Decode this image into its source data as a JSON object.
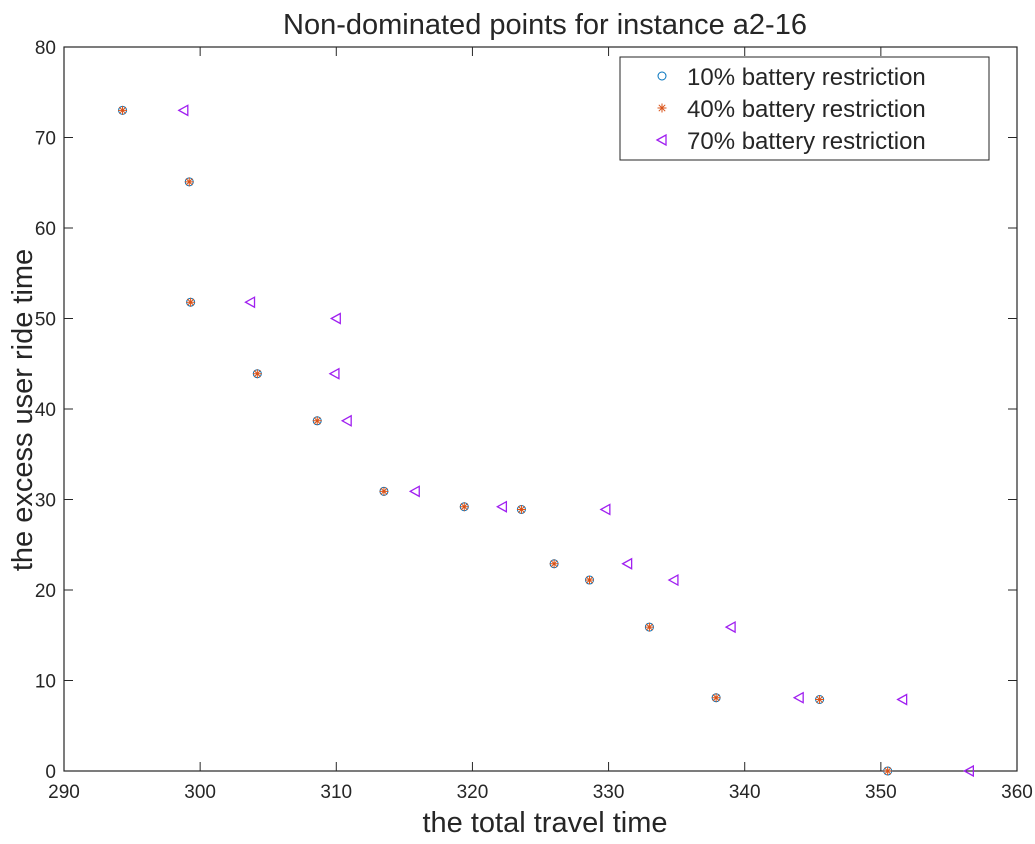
{
  "chart_data": {
    "type": "scatter",
    "title": "Non-dominated points for instance a2-16",
    "xlabel": "the total travel time",
    "ylabel": "the excess user ride time",
    "xlim": [
      290,
      360
    ],
    "ylim": [
      0,
      80
    ],
    "xticks": [
      290,
      300,
      310,
      320,
      330,
      340,
      350,
      360
    ],
    "yticks": [
      0,
      10,
      20,
      30,
      40,
      50,
      60,
      70,
      80
    ],
    "grid": false,
    "legend_position": "top-right",
    "series": [
      {
        "name": "10% battery restriction",
        "marker": "circle",
        "color": "#0072BD",
        "points": [
          [
            294.3,
            73.0
          ],
          [
            299.2,
            65.1
          ],
          [
            299.3,
            51.8
          ],
          [
            304.2,
            43.9
          ],
          [
            308.6,
            38.7
          ],
          [
            313.5,
            30.9
          ],
          [
            319.4,
            29.2
          ],
          [
            323.6,
            28.9
          ],
          [
            326.0,
            22.9
          ],
          [
            328.6,
            21.1
          ],
          [
            333.0,
            15.9
          ],
          [
            337.9,
            8.1
          ],
          [
            345.5,
            7.9
          ],
          [
            350.5,
            0.0
          ]
        ]
      },
      {
        "name": "40% battery restriction",
        "marker": "asterisk",
        "color": "#D95319",
        "points": [
          [
            294.3,
            73.0
          ],
          [
            299.2,
            65.1
          ],
          [
            299.3,
            51.8
          ],
          [
            304.2,
            43.9
          ],
          [
            308.6,
            38.7
          ],
          [
            313.5,
            30.9
          ],
          [
            319.4,
            29.2
          ],
          [
            323.6,
            28.9
          ],
          [
            326.0,
            22.9
          ],
          [
            328.6,
            21.1
          ],
          [
            333.0,
            15.9
          ],
          [
            337.9,
            8.1
          ],
          [
            345.5,
            7.9
          ],
          [
            350.5,
            0.0
          ]
        ]
      },
      {
        "name": "70% battery restriction",
        "marker": "triangle-left",
        "color": "#A020F0",
        "points": [
          [
            298.8,
            73.0
          ],
          [
            303.7,
            51.8
          ],
          [
            310.0,
            50.0
          ],
          [
            309.9,
            43.9
          ],
          [
            310.8,
            38.7
          ],
          [
            315.8,
            30.9
          ],
          [
            322.2,
            29.2
          ],
          [
            329.8,
            28.9
          ],
          [
            331.4,
            22.9
          ],
          [
            334.8,
            21.1
          ],
          [
            339.0,
            15.9
          ],
          [
            344.0,
            8.1
          ],
          [
            351.6,
            7.9
          ],
          [
            356.5,
            0.0
          ]
        ]
      }
    ]
  }
}
